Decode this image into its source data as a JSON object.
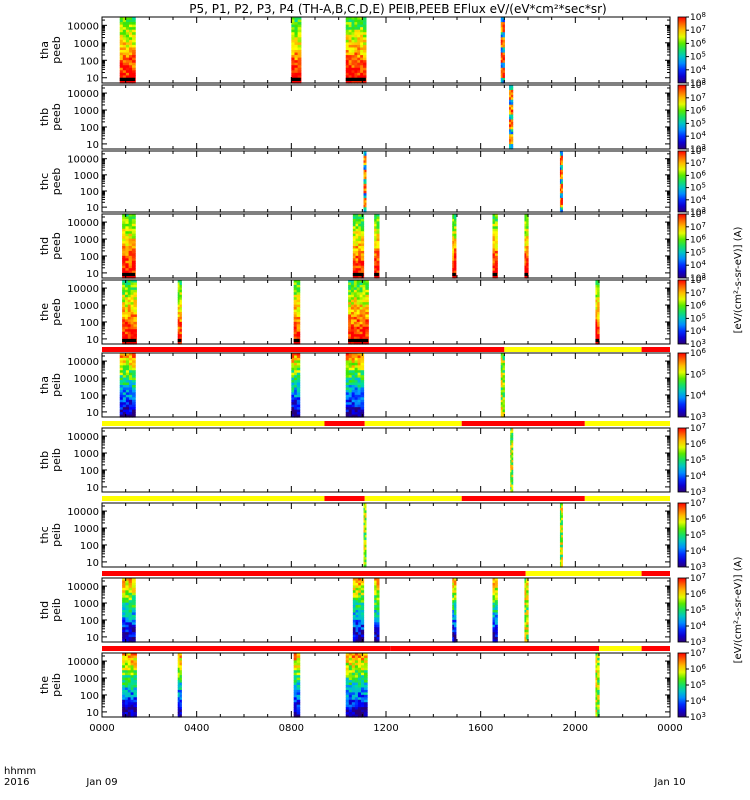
{
  "title": "P5, P1, P2, P3, P4 (TH-A,B,C,D,E) PEIB,PEEB EFlux eV/(eV*cm²*sec*sr)",
  "colorbar_side_label_top": "[eV/(cm²-s-sr-eV)] (A)",
  "colorbar_side_label_bottom": "[eV/(cm²-s-sr-eV)] (A)",
  "x_axis": {
    "ticks": [
      "0000",
      "0400",
      "0800",
      "1200",
      "1600",
      "2000",
      "0000"
    ],
    "row_label_top": "hhmm",
    "row_label_bottom": "2016",
    "date_start": "Jan 09",
    "date_end": "Jan 10"
  },
  "y_ticks": [
    "10000",
    "1000",
    "100",
    "10"
  ],
  "colors": {
    "red": "#ff0000",
    "yellow": "#ffff00",
    "black": "#000000"
  },
  "chart_data": {
    "type": "heatmap",
    "x_unit": "hours since 2016-01-09 00:00",
    "xlim": [
      0,
      24
    ],
    "ylim": [
      5,
      30000
    ],
    "y_scale": "log",
    "panels": [
      {
        "probe": "tha",
        "species": "peeb",
        "cb_max_exp": 8,
        "cb_min_exp": 3,
        "bursts": [
          [
            0.75,
            1.4,
            "full"
          ],
          [
            8.0,
            8.4,
            "full"
          ],
          [
            10.3,
            11.15,
            "full"
          ],
          [
            16.85,
            17.0,
            "narrow"
          ]
        ]
      },
      {
        "probe": "thb",
        "species": "peeb",
        "cb_max_exp": 8,
        "cb_min_exp": 3,
        "bursts": [
          [
            17.2,
            17.35,
            "narrow"
          ]
        ]
      },
      {
        "probe": "thc",
        "species": "peeb",
        "cb_max_exp": 8,
        "cb_min_exp": 3,
        "bursts": [
          [
            11.05,
            11.15,
            "narrow"
          ],
          [
            19.35,
            19.45,
            "narrow"
          ]
        ]
      },
      {
        "probe": "thd",
        "species": "peeb",
        "cb_max_exp": 8,
        "cb_min_exp": 3,
        "bursts": [
          [
            0.85,
            1.4,
            "full"
          ],
          [
            10.6,
            11.05,
            "full"
          ],
          [
            11.5,
            11.7,
            "full"
          ],
          [
            14.8,
            14.95,
            "full"
          ],
          [
            16.5,
            16.7,
            "full"
          ],
          [
            17.85,
            18.0,
            "full"
          ]
        ]
      },
      {
        "probe": "the",
        "species": "peeb",
        "cb_max_exp": 8,
        "cb_min_exp": 3,
        "bursts": [
          [
            0.85,
            1.45,
            "full"
          ],
          [
            3.2,
            3.35,
            "full"
          ],
          [
            8.1,
            8.35,
            "full"
          ],
          [
            10.4,
            11.25,
            "full"
          ],
          [
            20.85,
            21.0,
            "full"
          ]
        ]
      },
      {
        "probe": "tha",
        "species": "peib",
        "cb_max_exp": 6,
        "cb_min_exp": 3,
        "bursts": [
          [
            0.75,
            1.4,
            "ion"
          ],
          [
            8.0,
            8.35,
            "ion"
          ],
          [
            10.3,
            11.05,
            "ion"
          ],
          [
            16.85,
            17.0,
            "ionthin"
          ]
        ]
      },
      {
        "probe": "thb",
        "species": "peib",
        "cb_max_exp": 7,
        "cb_min_exp": 3,
        "bursts": [
          [
            17.25,
            17.35,
            "ionthin"
          ]
        ]
      },
      {
        "probe": "thc",
        "species": "peib",
        "cb_max_exp": 7,
        "cb_min_exp": 3,
        "bursts": [
          [
            11.05,
            11.15,
            "ionthin"
          ],
          [
            19.35,
            19.45,
            "ionthin"
          ]
        ]
      },
      {
        "probe": "thd",
        "species": "peib",
        "cb_max_exp": 7,
        "cb_min_exp": 3,
        "bursts": [
          [
            0.85,
            1.4,
            "ion"
          ],
          [
            10.6,
            11.05,
            "ion"
          ],
          [
            11.5,
            11.7,
            "ion"
          ],
          [
            14.8,
            14.95,
            "ion"
          ],
          [
            16.5,
            16.7,
            "ion"
          ],
          [
            17.85,
            18.0,
            "ionthin"
          ]
        ]
      },
      {
        "probe": "the",
        "species": "peib",
        "cb_max_exp": 7,
        "cb_min_exp": 3,
        "bursts": [
          [
            0.85,
            1.45,
            "ion"
          ],
          [
            3.2,
            3.35,
            "ion"
          ],
          [
            8.1,
            8.35,
            "ion"
          ],
          [
            10.3,
            11.2,
            "ion"
          ],
          [
            20.85,
            21.0,
            "ionthin"
          ]
        ]
      }
    ],
    "mode_bars": [
      {
        "after_panel": 4,
        "segments": [
          [
            0,
            17.0,
            "red"
          ],
          [
            17.0,
            22.8,
            "yellow"
          ],
          [
            22.8,
            24,
            "red"
          ]
        ]
      },
      {
        "after_panel": 5,
        "segments": [
          [
            0,
            9.4,
            "yellow"
          ],
          [
            9.4,
            11.1,
            "red"
          ],
          [
            11.1,
            15.2,
            "yellow"
          ],
          [
            15.2,
            20.4,
            "red"
          ],
          [
            20.4,
            24,
            "yellow"
          ]
        ]
      },
      {
        "after_panel": 6,
        "segments": [
          [
            0,
            9.4,
            "yellow"
          ],
          [
            9.4,
            11.1,
            "red"
          ],
          [
            11.1,
            15.2,
            "yellow"
          ],
          [
            15.2,
            20.4,
            "red"
          ],
          [
            20.4,
            24,
            "yellow"
          ]
        ]
      },
      {
        "after_panel": 7,
        "segments": [
          [
            0,
            17.9,
            "red"
          ],
          [
            17.9,
            22.8,
            "yellow"
          ],
          [
            22.8,
            24,
            "red"
          ]
        ]
      },
      {
        "after_panel": 8,
        "segments": [
          [
            0,
            12.2,
            "red"
          ],
          [
            12.2,
            21.0,
            "red"
          ],
          [
            21.0,
            22.8,
            "yellow"
          ],
          [
            22.8,
            24,
            "red"
          ]
        ]
      }
    ]
  }
}
